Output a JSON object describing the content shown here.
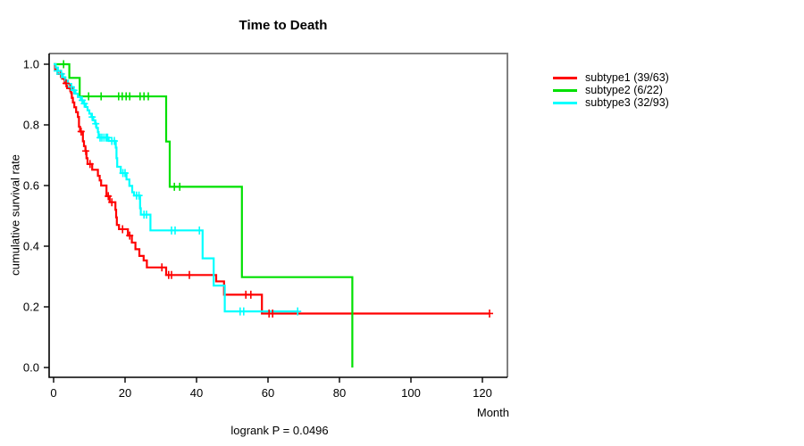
{
  "title": "Time to Death",
  "footer": "logrank P = 0.0496",
  "x_axis": {
    "label": "Month",
    "ticks": [
      0,
      20,
      40,
      60,
      80,
      100,
      120
    ],
    "range": [
      0,
      128
    ]
  },
  "y_axis": {
    "label": "cumulative survival rate",
    "ticks": [
      0.0,
      0.2,
      0.4,
      0.6,
      0.8,
      1.0
    ],
    "range": [
      0,
      1
    ]
  },
  "colors": {
    "subtype1": "#ff0000",
    "subtype2": "#00e000",
    "subtype3": "#00ffff",
    "box_gray": "#808080",
    "axis_black": "#000000"
  },
  "legend": {
    "items": [
      {
        "label": "subtype1 (39/63)",
        "color": "#ff0000"
      },
      {
        "label": "subtype2 (6/22)",
        "color": "#00e000"
      },
      {
        "label": "subtype3 (32/93)",
        "color": "#00ffff"
      }
    ]
  },
  "chart_data": {
    "type": "line",
    "subtype": "kaplan_meier_step_curves",
    "title": "Time to Death",
    "xlabel": "Month",
    "ylabel": "cumulative survival rate",
    "xlim": [
      0,
      128
    ],
    "ylim": [
      0,
      1
    ],
    "grid": false,
    "legend_position": "right-outside",
    "annotation": "logrank P = 0.0496",
    "series": [
      {
        "name": "subtype1 (39/63)",
        "events": 39,
        "n": 63,
        "color": "#ff0000",
        "start": [
          0,
          1.0
        ],
        "end_month": 122,
        "steps": [
          [
            0.4,
            0.984
          ],
          [
            1.1,
            0.968
          ],
          [
            2.4,
            0.952
          ],
          [
            3.1,
            0.937
          ],
          [
            3.8,
            0.921
          ],
          [
            4.9,
            0.905
          ],
          [
            5.1,
            0.889
          ],
          [
            5.4,
            0.874
          ],
          [
            5.8,
            0.858
          ],
          [
            6.3,
            0.842
          ],
          [
            6.8,
            0.826
          ],
          [
            7.1,
            0.794
          ],
          [
            7.4,
            0.778
          ],
          [
            8.2,
            0.746
          ],
          [
            8.5,
            0.73
          ],
          [
            8.9,
            0.714
          ],
          [
            9.2,
            0.69
          ],
          [
            9.5,
            0.671
          ],
          [
            10.8,
            0.652
          ],
          [
            12.4,
            0.632
          ],
          [
            12.9,
            0.617
          ],
          [
            13.3,
            0.6
          ],
          [
            14.8,
            0.565
          ],
          [
            15.7,
            0.545
          ],
          [
            17.3,
            0.52
          ],
          [
            17.5,
            0.495
          ],
          [
            17.7,
            0.47
          ],
          [
            18.3,
            0.456
          ],
          [
            20.8,
            0.435
          ],
          [
            21.9,
            0.412
          ],
          [
            22.9,
            0.39
          ],
          [
            24,
            0.368
          ],
          [
            25.2,
            0.353
          ],
          [
            26.1,
            0.33
          ],
          [
            31.5,
            0.305
          ],
          [
            45.5,
            0.284
          ],
          [
            47.7,
            0.24
          ],
          [
            58.3,
            0.178
          ]
        ],
        "censors": [
          [
            2,
            0.968
          ],
          [
            3.5,
            0.937
          ],
          [
            4.6,
            0.921
          ],
          [
            7.7,
            0.778
          ],
          [
            9,
            0.714
          ],
          [
            10.2,
            0.671
          ],
          [
            15.3,
            0.565
          ],
          [
            16.3,
            0.545
          ],
          [
            19.3,
            0.456
          ],
          [
            21.3,
            0.435
          ],
          [
            30.3,
            0.33
          ],
          [
            32.2,
            0.305
          ],
          [
            33,
            0.305
          ],
          [
            38,
            0.305
          ],
          [
            53.8,
            0.24
          ],
          [
            55.2,
            0.24
          ],
          [
            60.3,
            0.178
          ],
          [
            61.3,
            0.178
          ],
          [
            122,
            0.178
          ]
        ]
      },
      {
        "name": "subtype2 (6/22)",
        "events": 6,
        "n": 22,
        "color": "#00e000",
        "start": [
          0,
          1.0
        ],
        "end_month": 83.6,
        "steps": [
          [
            4.4,
            0.955
          ],
          [
            7.3,
            0.894
          ],
          [
            31.5,
            0.745
          ],
          [
            32.5,
            0.596
          ],
          [
            52.7,
            0.298
          ],
          [
            83.6,
            0
          ]
        ],
        "censors": [
          [
            2.8,
            1
          ],
          [
            9.8,
            0.894
          ],
          [
            13.3,
            0.894
          ],
          [
            18.2,
            0.894
          ],
          [
            19.2,
            0.894
          ],
          [
            20.3,
            0.894
          ],
          [
            21.3,
            0.894
          ],
          [
            24.2,
            0.894
          ],
          [
            25.3,
            0.894
          ],
          [
            26.5,
            0.894
          ],
          [
            33.8,
            0.596
          ],
          [
            35.3,
            0.596
          ]
        ]
      },
      {
        "name": "subtype3 (32/93)",
        "events": 32,
        "n": 93,
        "color": "#00ffff",
        "start": [
          0,
          1.0
        ],
        "end_month": 68.3,
        "steps": [
          [
            0.6,
            0.989
          ],
          [
            1.2,
            0.978
          ],
          [
            1.9,
            0.968
          ],
          [
            2.6,
            0.957
          ],
          [
            3.3,
            0.946
          ],
          [
            4,
            0.935
          ],
          [
            4.7,
            0.925
          ],
          [
            5.4,
            0.914
          ],
          [
            6.1,
            0.903
          ],
          [
            6.8,
            0.892
          ],
          [
            7.6,
            0.881
          ],
          [
            8.4,
            0.87
          ],
          [
            9,
            0.859
          ],
          [
            9.5,
            0.848
          ],
          [
            10,
            0.837
          ],
          [
            10.6,
            0.826
          ],
          [
            11.1,
            0.815
          ],
          [
            11.6,
            0.804
          ],
          [
            12,
            0.79
          ],
          [
            12.4,
            0.776
          ],
          [
            12.6,
            0.758
          ],
          [
            15.4,
            0.747
          ],
          [
            17.4,
            0.725
          ],
          [
            17.6,
            0.69
          ],
          [
            17.8,
            0.662
          ],
          [
            18.8,
            0.641
          ],
          [
            20.4,
            0.62
          ],
          [
            21.2,
            0.599
          ],
          [
            22,
            0.578
          ],
          [
            22.5,
            0.567
          ],
          [
            24.2,
            0.525
          ],
          [
            24.4,
            0.504
          ],
          [
            27.1,
            0.452
          ],
          [
            41.7,
            0.36
          ],
          [
            44.8,
            0.27
          ],
          [
            47.9,
            0.185
          ]
        ],
        "censors": [
          [
            1,
            0.978
          ],
          [
            2.2,
            0.968
          ],
          [
            5,
            0.925
          ],
          [
            5.7,
            0.914
          ],
          [
            8,
            0.881
          ],
          [
            8.6,
            0.87
          ],
          [
            10.8,
            0.826
          ],
          [
            11.8,
            0.804
          ],
          [
            13,
            0.758
          ],
          [
            13.5,
            0.758
          ],
          [
            14.1,
            0.758
          ],
          [
            14.7,
            0.758
          ],
          [
            15.1,
            0.758
          ],
          [
            16.3,
            0.747
          ],
          [
            17,
            0.747
          ],
          [
            19.4,
            0.641
          ],
          [
            20,
            0.641
          ],
          [
            23.2,
            0.567
          ],
          [
            23.9,
            0.567
          ],
          [
            25.3,
            0.504
          ],
          [
            26,
            0.504
          ],
          [
            33,
            0.452
          ],
          [
            34,
            0.452
          ],
          [
            40.8,
            0.452
          ],
          [
            52.2,
            0.185
          ],
          [
            53.2,
            0.185
          ],
          [
            68.3,
            0.185
          ]
        ]
      }
    ]
  }
}
